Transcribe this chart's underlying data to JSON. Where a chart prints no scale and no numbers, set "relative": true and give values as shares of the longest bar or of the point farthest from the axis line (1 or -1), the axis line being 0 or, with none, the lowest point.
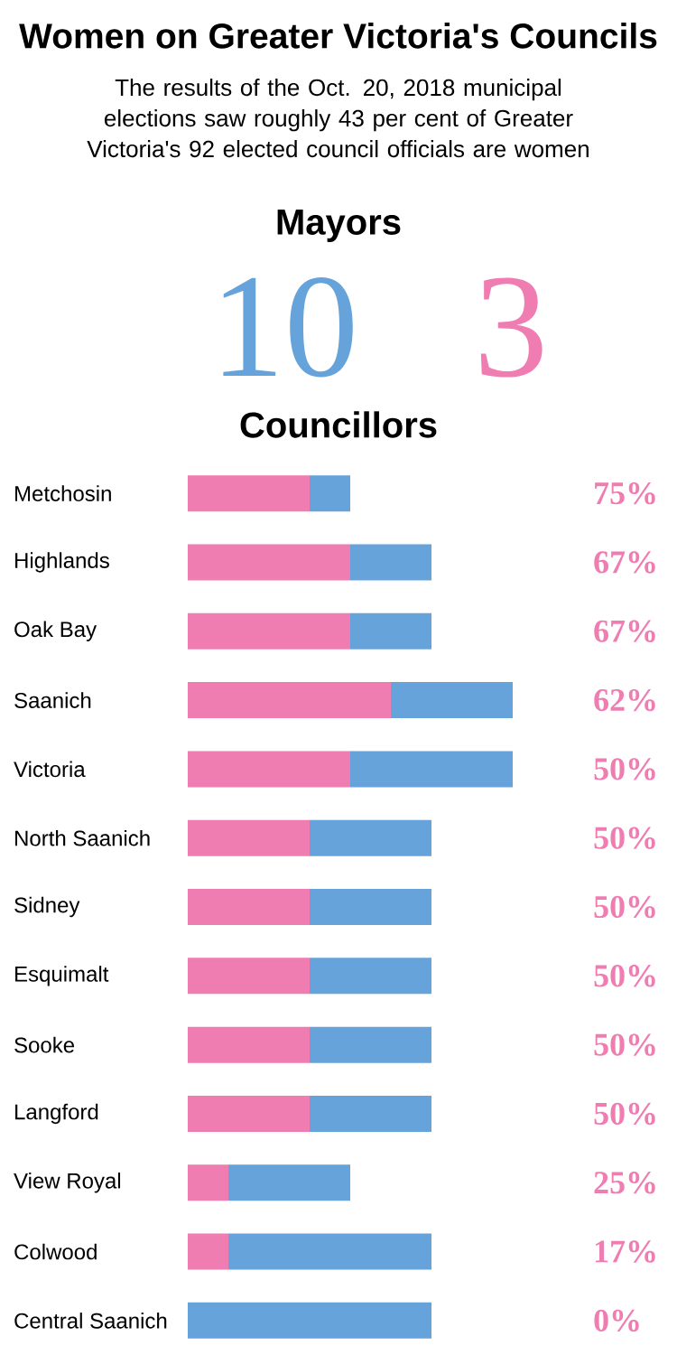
{
  "chart_data": [
    {
      "type": "other",
      "title": "Women on Greater Victoria's Councils",
      "subtitle": "The results of the Oct. 20, 2018 municipal elections saw roughly 43 per cent of Greater Victoria's 92 elected council officials are women"
    },
    {
      "type": "other",
      "title": "Mayors",
      "values": [
        10,
        3
      ],
      "colors": [
        "#66a3db",
        "#f07db2"
      ],
      "data_labels": true
    },
    {
      "type": "bar",
      "title": "Councillors",
      "orientation": "horizontal",
      "stacked": true,
      "relative": true,
      "categories": [
        "Metchosin",
        "Highlands",
        "Oak Bay",
        "Saanich",
        "Victoria",
        "North Saanich",
        "Sidney",
        "Esquimalt",
        "Sooke",
        "Langford",
        "View Royal",
        "Colwood",
        "Central Saanich"
      ],
      "series": [
        {
          "color": "#f07db2",
          "values": [
            0.375,
            0.5,
            0.5,
            0.625,
            0.5,
            0.375,
            0.375,
            0.375,
            0.375,
            0.375,
            0.125,
            0.125,
            0
          ]
        },
        {
          "color": "#66a3db",
          "values": [
            0.125,
            0.25,
            0.25,
            0.375,
            0.5,
            0.375,
            0.375,
            0.375,
            0.375,
            0.375,
            0.375,
            0.625,
            0.75
          ]
        }
      ],
      "annotations": [
        "75%",
        "67%",
        "67%",
        "62%",
        "50%",
        "50%",
        "50%",
        "50%",
        "50%",
        "50%",
        "25%",
        "17%",
        "0%"
      ]
    }
  ]
}
